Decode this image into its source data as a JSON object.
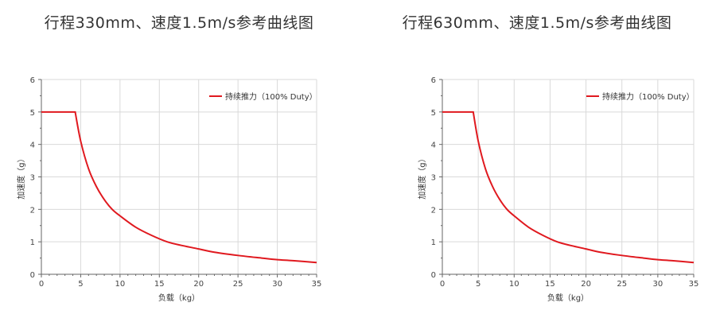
{
  "chart_data": [
    {
      "type": "line",
      "title": "行程330mm、速度1.5m/s参考曲线图",
      "xlabel": "负载（kg）",
      "ylabel": "加速度（g）",
      "xlim": [
        0,
        35
      ],
      "ylim": [
        0,
        6
      ],
      "xticks": [
        "0",
        "5",
        "10",
        "15",
        "20",
        "25",
        "30",
        "35"
      ],
      "yticks": [
        "0",
        "1",
        "2",
        "3",
        "4",
        "5",
        "6"
      ],
      "grid": true,
      "legend_position": "top-right",
      "series": [
        {
          "name": "持续推力（100% Duty）",
          "color": "#e0191f",
          "x": [
            0,
            4.3,
            5,
            6,
            7,
            8,
            9,
            10,
            12,
            14,
            16,
            18,
            20,
            22,
            25,
            28,
            30,
            32,
            35
          ],
          "y": [
            5.0,
            5.0,
            4.1,
            3.25,
            2.7,
            2.3,
            2.0,
            1.8,
            1.45,
            1.2,
            1.0,
            0.88,
            0.78,
            0.68,
            0.58,
            0.5,
            0.45,
            0.42,
            0.36
          ]
        }
      ]
    },
    {
      "type": "line",
      "title": "行程630mm、速度1.5m/s参考曲线图",
      "xlabel": "负载（kg）",
      "ylabel": "加速度（g）",
      "xlim": [
        0,
        35
      ],
      "ylim": [
        0,
        6
      ],
      "xticks": [
        "0",
        "5",
        "10",
        "15",
        "20",
        "25",
        "30",
        "35"
      ],
      "yticks": [
        "0",
        "1",
        "2",
        "3",
        "4",
        "5",
        "6"
      ],
      "grid": true,
      "legend_position": "top-right",
      "series": [
        {
          "name": "持续推力（100% Duty）",
          "color": "#e0191f",
          "x": [
            0,
            4.3,
            5,
            6,
            7,
            8,
            9,
            10,
            12,
            14,
            16,
            18,
            20,
            22,
            25,
            28,
            30,
            32,
            35
          ],
          "y": [
            5.0,
            5.0,
            4.1,
            3.25,
            2.7,
            2.3,
            2.0,
            1.8,
            1.45,
            1.2,
            1.0,
            0.88,
            0.78,
            0.68,
            0.58,
            0.5,
            0.45,
            0.42,
            0.36
          ]
        }
      ]
    }
  ]
}
